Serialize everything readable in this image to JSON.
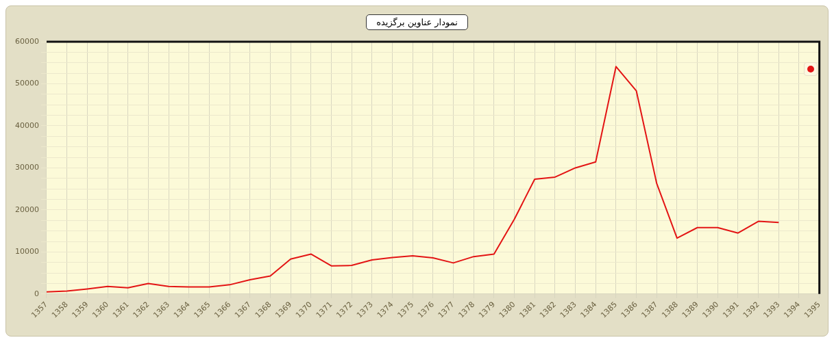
{
  "chart_data": {
    "type": "line",
    "title": "نمودار عناوین برگزیده",
    "categories": [
      "1357",
      "1358",
      "1359",
      "1360",
      "1361",
      "1362",
      "1363",
      "1364",
      "1365",
      "1366",
      "1367",
      "1368",
      "1369",
      "1370",
      "1371",
      "1372",
      "1373",
      "1374",
      "1375",
      "1376",
      "1377",
      "1378",
      "1379",
      "1380",
      "1381",
      "1382",
      "1383",
      "1384",
      "1385",
      "1386",
      "1387",
      "1388",
      "1389",
      "1390",
      "1391",
      "1392",
      "1393",
      "1394",
      "1395"
    ],
    "series": [
      {
        "color": "#e31414",
        "values": [
          500,
          700,
          1200,
          1800,
          1500,
          2500,
          1800,
          1700,
          1700,
          2200,
          3400,
          4300,
          8300,
          9500,
          6700,
          6800,
          8100,
          8700,
          9100,
          8600,
          7400,
          8900,
          9500,
          17800,
          27300,
          27800,
          30000,
          31400,
          54100,
          48300,
          26300,
          13300,
          15800,
          15800,
          14500,
          17300,
          17000,
          null,
          null
        ]
      }
    ],
    "ylim": [
      0,
      60000
    ],
    "yticks": [
      0,
      {
        "value": 2500,
        "label": null
      },
      {
        "value": 5000,
        "label": null
      },
      {
        "value": 7500,
        "label": null
      },
      10000,
      {
        "value": 12500,
        "label": null
      },
      {
        "value": 15000,
        "label": null
      },
      {
        "value": 17500,
        "label": null
      },
      20000,
      {
        "value": 22500,
        "label": null
      },
      {
        "value": 25000,
        "label": null
      },
      {
        "value": 27500,
        "label": null
      },
      30000,
      {
        "value": 32500,
        "label": null
      },
      {
        "value": 35000,
        "label": null
      },
      {
        "value": 37500,
        "label": null
      },
      40000,
      {
        "value": 42500,
        "label": null
      },
      {
        "value": 45000,
        "label": null
      },
      {
        "value": 47500,
        "label": null
      },
      50000,
      {
        "value": 52500,
        "label": null
      },
      {
        "value": 55000,
        "label": null
      },
      {
        "value": 57500,
        "label": null
      },
      60000
    ],
    "grid": true,
    "marker": "none",
    "line_style": "solid"
  }
}
